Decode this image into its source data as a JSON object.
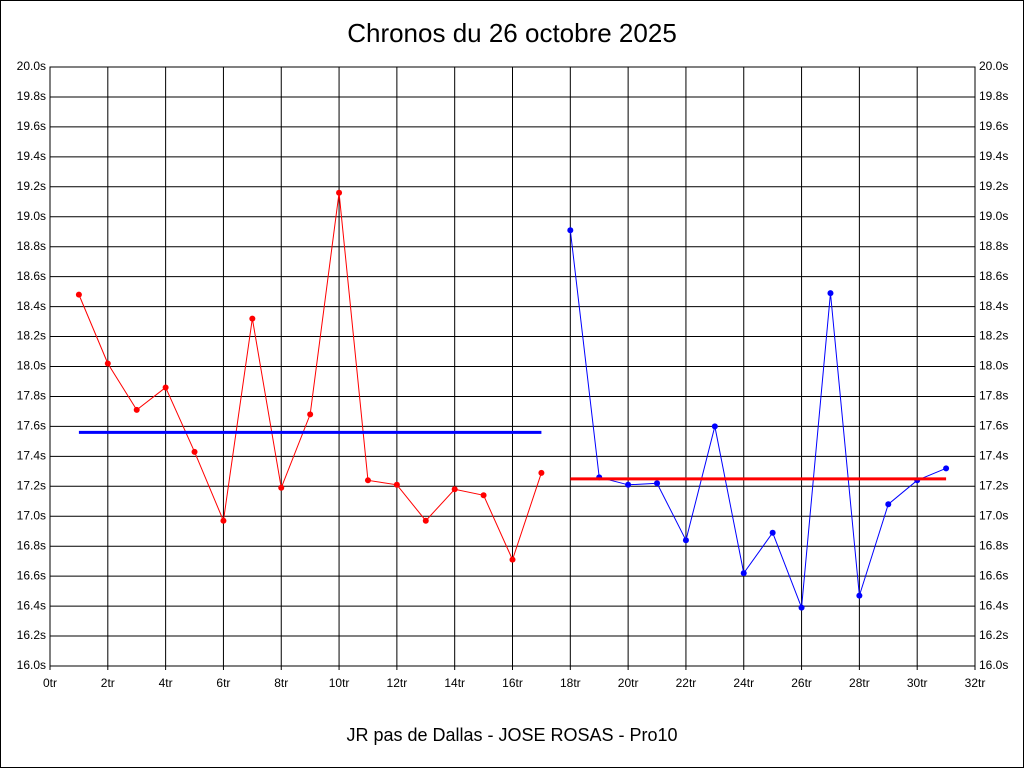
{
  "chart_data": {
    "type": "line",
    "title": "Chronos du 26 octobre 2025",
    "x_label": "JR pas de Dallas - JOSE ROSAS - Pro10",
    "xlim": [
      0,
      32
    ],
    "xticks": [
      {
        "value": 0,
        "label": "0tr"
      },
      {
        "value": 2,
        "label": "2tr"
      },
      {
        "value": 4,
        "label": "4tr"
      },
      {
        "value": 6,
        "label": "6tr"
      },
      {
        "value": 8,
        "label": "8tr"
      },
      {
        "value": 10,
        "label": "10tr"
      },
      {
        "value": 12,
        "label": "12tr"
      },
      {
        "value": 14,
        "label": "14tr"
      },
      {
        "value": 16,
        "label": "16tr"
      },
      {
        "value": 18,
        "label": "18tr"
      },
      {
        "value": 20,
        "label": "20tr"
      },
      {
        "value": 22,
        "label": "22tr"
      },
      {
        "value": 24,
        "label": "24tr"
      },
      {
        "value": 26,
        "label": "26tr"
      },
      {
        "value": 28,
        "label": "28tr"
      },
      {
        "value": 30,
        "label": "30tr"
      },
      {
        "value": 32,
        "label": "32tr"
      }
    ],
    "ylim": [
      16.0,
      20.0
    ],
    "yticks": [
      {
        "value": 16.0,
        "label": "16.0s"
      },
      {
        "value": 16.2,
        "label": "16.2s"
      },
      {
        "value": 16.4,
        "label": "16.4s"
      },
      {
        "value": 16.6,
        "label": "16.6s"
      },
      {
        "value": 16.8,
        "label": "16.8s"
      },
      {
        "value": 17.0,
        "label": "17.0s"
      },
      {
        "value": 17.2,
        "label": "17.2s"
      },
      {
        "value": 17.4,
        "label": "17.4s"
      },
      {
        "value": 17.6,
        "label": "17.6s"
      },
      {
        "value": 17.8,
        "label": "17.8s"
      },
      {
        "value": 18.0,
        "label": "18.0s"
      },
      {
        "value": 18.2,
        "label": "18.2s"
      },
      {
        "value": 18.4,
        "label": "18.4s"
      },
      {
        "value": 18.6,
        "label": "18.6s"
      },
      {
        "value": 18.8,
        "label": "18.8s"
      },
      {
        "value": 19.0,
        "label": "19.0s"
      },
      {
        "value": 19.2,
        "label": "19.2s"
      },
      {
        "value": 19.4,
        "label": "19.4s"
      },
      {
        "value": 19.6,
        "label": "19.6s"
      },
      {
        "value": 19.8,
        "label": "19.8s"
      },
      {
        "value": 20.0,
        "label": "20.0s"
      }
    ],
    "grid": true,
    "right_axis_labels": true,
    "series": [
      {
        "color": "#ff0000",
        "markers": true,
        "line_width": 1,
        "x": [
          1,
          2,
          3,
          4,
          5,
          6,
          7,
          8,
          9,
          10,
          11,
          12,
          13,
          14,
          15,
          16,
          17
        ],
        "values": [
          18.48,
          18.02,
          17.71,
          17.86,
          17.43,
          16.97,
          18.32,
          17.19,
          17.68,
          19.16,
          17.24,
          17.21,
          16.97,
          17.18,
          17.14,
          16.71,
          17.29
        ]
      },
      {
        "color": "#0000ff",
        "markers": false,
        "line_width": 3,
        "x": [
          1,
          17
        ],
        "values": [
          17.56,
          17.56
        ]
      },
      {
        "color": "#0000ff",
        "markers": true,
        "line_width": 1,
        "x": [
          18,
          19,
          20,
          21,
          22,
          23,
          24,
          25,
          26,
          27,
          28,
          29,
          30,
          31
        ],
        "values": [
          18.91,
          17.26,
          17.21,
          17.22,
          16.84,
          17.6,
          16.62,
          16.89,
          16.39,
          18.49,
          16.47,
          17.08,
          17.24,
          17.32
        ]
      },
      {
        "color": "#ff0000",
        "markers": false,
        "line_width": 3,
        "x": [
          18,
          31
        ],
        "values": [
          17.25,
          17.25
        ]
      }
    ]
  }
}
